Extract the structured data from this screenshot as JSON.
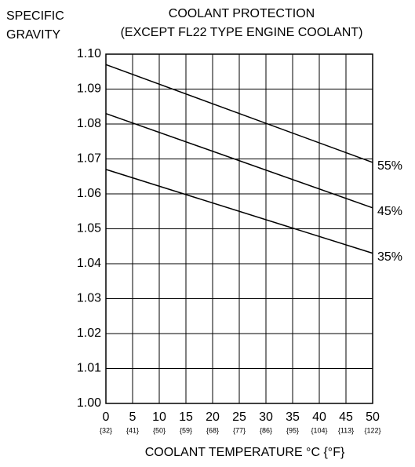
{
  "chart_data": {
    "type": "line",
    "title": "COOLANT PROTECTION",
    "subtitle": "(EXCEPT FL22 TYPE ENGINE COOLANT)",
    "y_label_lines": [
      "SPECIFIC",
      "GRAVITY"
    ],
    "x_label": "COOLANT TEMPERATURE  °C {°F}",
    "x": [
      0,
      50
    ],
    "series": [
      {
        "name": "55%",
        "color": "#000000",
        "values": [
          1.097,
          1.069
        ]
      },
      {
        "name": "45%",
        "color": "#000000",
        "values": [
          1.083,
          1.056
        ]
      },
      {
        "name": "35%",
        "color": "#000000",
        "values": [
          1.067,
          1.043
        ]
      }
    ],
    "xlim": [
      0,
      50
    ],
    "xticks": [
      0,
      5,
      10,
      15,
      20,
      25,
      30,
      35,
      40,
      45,
      50
    ],
    "xtick_sublabels": [
      "{32}",
      "{41}",
      "{50}",
      "{59}",
      "{68}",
      "{77}",
      "{86}",
      "{95}",
      "{104}",
      "{113}",
      "{122}"
    ],
    "ylim": [
      1.0,
      1.1
    ],
    "yticks": [
      {
        "value": 1.0,
        "label": "1.00"
      },
      1.01,
      1.02,
      1.03,
      1.04,
      1.05,
      1.06,
      1.07,
      1.08,
      1.09,
      {
        "value": 1.1,
        "label": "1.10"
      }
    ],
    "grid": true
  }
}
